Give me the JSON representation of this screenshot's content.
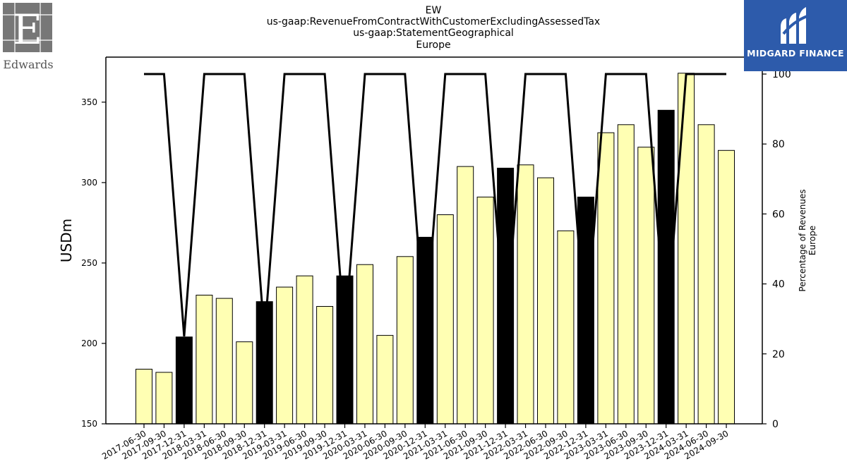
{
  "header": {
    "title_lines": [
      "EW",
      "us-gaap:RevenueFromContractWithCustomerExcludingAssessedTax",
      "us-gaap:StatementGeographical",
      "Europe"
    ]
  },
  "logos": {
    "left": {
      "name": "Edwards",
      "text": "Edwards",
      "color": "#6e6e6e"
    },
    "right": {
      "name": "Midgard Finance",
      "text": "MIDGARD FINANCE",
      "color": "#2d5bab"
    }
  },
  "chart_data": {
    "type": "bar",
    "title": "",
    "xlabel": "",
    "ylabel": "USDm",
    "y2label": "Percentage of Revenues\nEurope",
    "ylim": [
      150,
      378
    ],
    "y2lim": [
      0,
      100
    ],
    "yticks": [
      150,
      200,
      250,
      300,
      350
    ],
    "y2ticks": [
      0,
      20,
      40,
      60,
      80,
      100
    ],
    "grid": false,
    "categories": [
      "2017-06-30",
      "2017-09-30",
      "2017-12-31",
      "2018-03-31",
      "2018-06-30",
      "2018-09-30",
      "2018-12-31",
      "2019-03-31",
      "2019-06-30",
      "2019-09-30",
      "2019-12-31",
      "2020-03-31",
      "2020-06-30",
      "2020-09-30",
      "2020-12-31",
      "2021-03-31",
      "2021-06-30",
      "2021-09-30",
      "2021-12-31",
      "2022-03-31",
      "2022-06-30",
      "2022-09-30",
      "2022-12-31",
      "2023-03-31",
      "2023-06-30",
      "2023-09-30",
      "2023-12-31",
      "2024-03-31",
      "2024-06-30",
      "2024-09-30"
    ],
    "series": [
      {
        "axis": "left",
        "kind": "bar",
        "values": [
          184,
          182,
          204,
          230,
          228,
          201,
          226,
          235,
          242,
          223,
          242,
          249,
          205,
          254,
          266,
          280,
          310,
          291,
          309,
          311,
          303,
          270,
          291,
          331,
          336,
          322,
          345,
          368,
          336,
          320
        ],
        "highlight": [
          false,
          false,
          true,
          false,
          false,
          false,
          true,
          false,
          false,
          false,
          true,
          false,
          false,
          false,
          true,
          false,
          false,
          false,
          true,
          false,
          false,
          false,
          true,
          false,
          false,
          false,
          true,
          false,
          false,
          false
        ],
        "color": "#ffffb3",
        "highlight_color": "#000000"
      },
      {
        "axis": "right",
        "kind": "line",
        "values": [
          100,
          100,
          25,
          100,
          100,
          100,
          25,
          100,
          100,
          100,
          25,
          100,
          100,
          100,
          25,
          100,
          100,
          100,
          25,
          100,
          100,
          100,
          25,
          100,
          100,
          100,
          25,
          100,
          100,
          100
        ],
        "color": "#000000"
      }
    ]
  }
}
